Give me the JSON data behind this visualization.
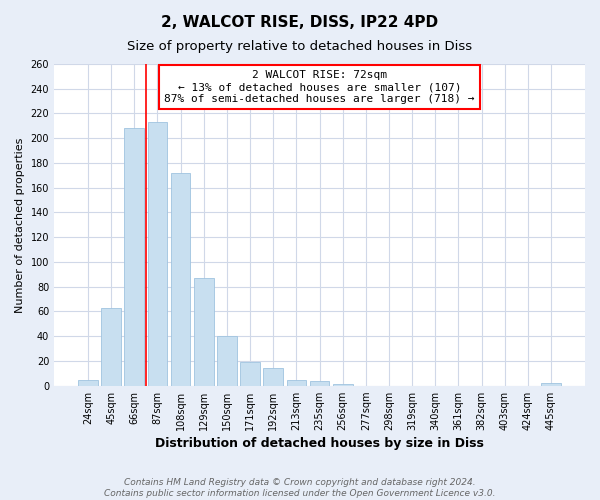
{
  "title": "2, WALCOT RISE, DISS, IP22 4PD",
  "subtitle": "Size of property relative to detached houses in Diss",
  "xlabel": "Distribution of detached houses by size in Diss",
  "ylabel": "Number of detached properties",
  "footer_line1": "Contains HM Land Registry data © Crown copyright and database right 2024.",
  "footer_line2": "Contains public sector information licensed under the Open Government Licence v3.0.",
  "bin_labels": [
    "24sqm",
    "45sqm",
    "66sqm",
    "87sqm",
    "108sqm",
    "129sqm",
    "150sqm",
    "171sqm",
    "192sqm",
    "213sqm",
    "235sqm",
    "256sqm",
    "277sqm",
    "298sqm",
    "319sqm",
    "340sqm",
    "361sqm",
    "382sqm",
    "403sqm",
    "424sqm",
    "445sqm"
  ],
  "bar_values": [
    5,
    63,
    208,
    213,
    172,
    87,
    40,
    19,
    14,
    5,
    4,
    1,
    0,
    0,
    0,
    0,
    0,
    0,
    0,
    0,
    2
  ],
  "bar_color": "#c8dff0",
  "bar_edge_color": "#a0c4e0",
  "vline_x": 2.0,
  "vline_color": "red",
  "annotation_text": "2 WALCOT RISE: 72sqm\n← 13% of detached houses are smaller (107)\n87% of semi-detached houses are larger (718) →",
  "annotation_box_color": "white",
  "annotation_box_edge": "red",
  "ylim": [
    0,
    260
  ],
  "yticks": [
    0,
    20,
    40,
    60,
    80,
    100,
    120,
    140,
    160,
    180,
    200,
    220,
    240,
    260
  ],
  "fig_background_color": "#e8eef8",
  "axes_background_color": "white",
  "grid_color": "#d0d8e8",
  "title_fontsize": 11,
  "subtitle_fontsize": 9.5,
  "xlabel_fontsize": 9,
  "ylabel_fontsize": 8,
  "tick_fontsize": 7,
  "annotation_fontsize": 8,
  "footer_fontsize": 6.5
}
